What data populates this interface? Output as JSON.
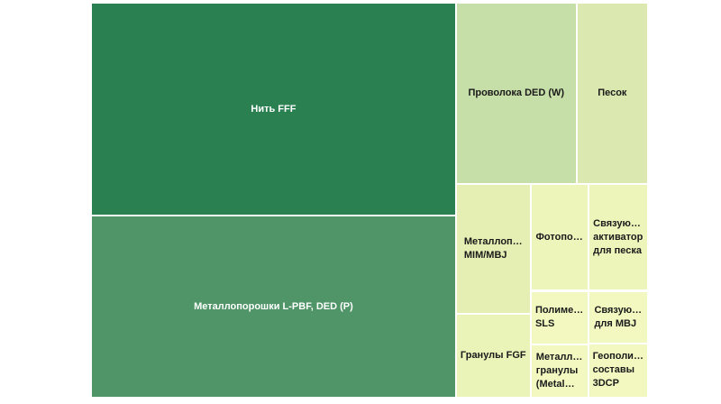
{
  "chart_data": {
    "type": "treemap",
    "categories": [
      "Нить FFF",
      "Металлопорошки L-PBF, DED (P)",
      "Проволока DED (W)",
      "Песок",
      "Металлоп…\nMIM/MBJ",
      "Гранулы FGF",
      "Фотопо…",
      "Полиме…\nSLS",
      "Металл…\nгранулы\n(Metal…",
      "Связую…\nактиватор\nдля песка",
      "Связую…\nдля MBJ",
      "Геополи…\nсоставы\n3DCP"
    ],
    "values": [
      96,
      82,
      27,
      16,
      12,
      7.7,
      7.6,
      3.8,
      3.8,
      7.9,
      3.9,
      4.0
    ],
    "colors": [
      "#2a8050",
      "#4f9567",
      "#c6dea7",
      "#dbe9b1",
      "#e5efb4",
      "#eaf3b8",
      "#eef5bb",
      "#f2f8c0",
      "#f2f8c0",
      "#eef5bb",
      "#f2f8c0",
      "#f2f8c0"
    ]
  }
}
